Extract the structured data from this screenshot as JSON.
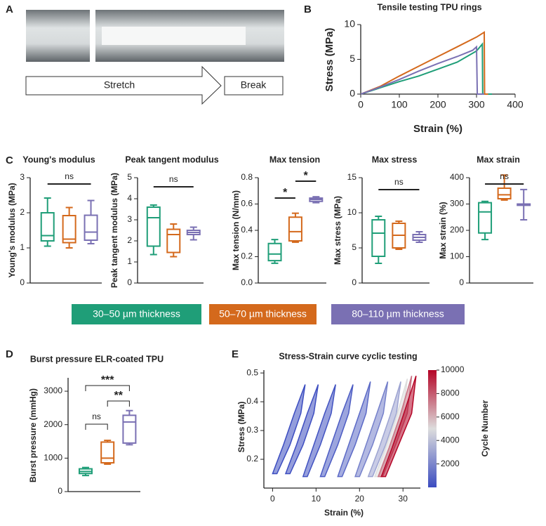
{
  "panels": [
    "A",
    "B",
    "C",
    "D",
    "E"
  ],
  "figure_a": {
    "steps": [
      "Stretch",
      "Break"
    ]
  },
  "legend": [
    {
      "name": "30–50 µm thickness",
      "color": "#1f9e78"
    },
    {
      "name": "50–70 µm thickness",
      "color": "#d4691c"
    },
    {
      "name": "80–110 µm thickness",
      "color": "#7a70b3"
    }
  ],
  "chart_data": [
    {
      "type": "line",
      "title": "Tensile testing TPU rings",
      "xlabel": "Strain (%)",
      "ylabel": "Stress (MPa)",
      "xlim": [
        0,
        400
      ],
      "xticks": [
        0,
        100,
        200,
        300,
        400
      ],
      "ylim": [
        0,
        10
      ],
      "yticks": [
        0,
        5,
        10
      ],
      "series": [
        {
          "color": "#1f9e78",
          "x": [
            0,
            50,
            100,
            150,
            200,
            250,
            300,
            315,
            316,
            340
          ],
          "values": [
            0,
            0.9,
            1.8,
            2.6,
            3.6,
            4.6,
            6.2,
            7.2,
            0,
            0
          ]
        },
        {
          "color": "#d4691c",
          "x": [
            0,
            50,
            100,
            150,
            200,
            250,
            300,
            320,
            321,
            330
          ],
          "values": [
            0,
            1.1,
            2.6,
            4.0,
            5.4,
            6.8,
            8.2,
            8.9,
            0,
            0
          ]
        },
        {
          "color": "#7a70b3",
          "x": [
            0,
            50,
            100,
            150,
            200,
            250,
            290,
            300,
            302,
            320
          ],
          "values": [
            0,
            1.0,
            2.1,
            3.3,
            4.4,
            5.4,
            6.3,
            6.8,
            0,
            0
          ]
        }
      ]
    },
    {
      "type": "box",
      "title": "Young's modulus",
      "ylabel": "Young's modulus (MPa)",
      "ylim": [
        0,
        3
      ],
      "yticks": [
        0,
        1,
        2,
        3
      ],
      "annotations": [
        "ns"
      ],
      "boxes": [
        {
          "min": 1.05,
          "q1": 1.2,
          "median": 1.35,
          "q3": 2.0,
          "max": 2.42
        },
        {
          "min": 1.0,
          "q1": 1.15,
          "median": 1.25,
          "q3": 1.92,
          "max": 2.15
        },
        {
          "min": 1.12,
          "q1": 1.22,
          "median": 1.45,
          "q3": 1.93,
          "max": 2.35
        }
      ]
    },
    {
      "type": "box",
      "title": "Peak tangent modulus",
      "ylabel": "Peak tangent modulus (MPa)",
      "ylim": [
        0,
        5
      ],
      "yticks": [
        0,
        1,
        2,
        3,
        4,
        5
      ],
      "annotations": [
        "ns"
      ],
      "boxes": [
        {
          "min": 1.35,
          "q1": 1.75,
          "median": 3.1,
          "q3": 3.6,
          "max": 3.7
        },
        {
          "min": 1.25,
          "q1": 1.45,
          "median": 2.3,
          "q3": 2.55,
          "max": 2.8
        },
        {
          "min": 2.05,
          "q1": 2.3,
          "median": 2.4,
          "q3": 2.5,
          "max": 2.65
        }
      ]
    },
    {
      "type": "box",
      "title": "Max tension",
      "ylabel": "Max tension (N/mm)",
      "ylim": [
        0,
        0.8
      ],
      "yticks": [
        {
          "value": 0,
          "label": "0.0"
        },
        0.2,
        0.4,
        0.6,
        0.8
      ],
      "annotations": [
        "*",
        "*"
      ],
      "boxes": [
        {
          "min": 0.15,
          "q1": 0.17,
          "median": 0.22,
          "q3": 0.3,
          "max": 0.33
        },
        {
          "min": 0.31,
          "q1": 0.32,
          "median": 0.39,
          "q3": 0.5,
          "max": 0.53
        },
        {
          "min": 0.61,
          "q1": 0.62,
          "median": 0.635,
          "q3": 0.645,
          "max": 0.655
        }
      ]
    },
    {
      "type": "box",
      "title": "Max stress",
      "ylabel": "Max stress (MPa)",
      "ylim": [
        0,
        15
      ],
      "yticks": [
        0,
        5,
        10,
        15
      ],
      "annotations": [
        "ns"
      ],
      "boxes": [
        {
          "min": 2.8,
          "q1": 3.8,
          "median": 7.1,
          "q3": 9.0,
          "max": 9.5
        },
        {
          "min": 4.8,
          "q1": 5.0,
          "median": 6.8,
          "q3": 8.5,
          "max": 8.8
        },
        {
          "min": 5.8,
          "q1": 6.1,
          "median": 6.5,
          "q3": 6.9,
          "max": 7.3
        }
      ]
    },
    {
      "type": "box",
      "title": "Max strain",
      "ylabel": "Max strain (%)",
      "ylim": [
        0,
        400
      ],
      "yticks": [
        0,
        100,
        200,
        300,
        400
      ],
      "annotations": [
        "ns"
      ],
      "boxes": [
        {
          "min": 165,
          "q1": 190,
          "median": 270,
          "q3": 305,
          "max": 310
        },
        {
          "min": 315,
          "q1": 320,
          "median": 335,
          "q3": 360,
          "max": 410
        },
        {
          "min": 240,
          "q1": 295,
          "median": 298,
          "q3": 300,
          "max": 355
        }
      ]
    },
    {
      "type": "box",
      "title": "Burst pressure ELR-coated TPU",
      "ylabel": "Burst pressure (mmHg)",
      "ylim": [
        0,
        3400
      ],
      "yticks": [
        0,
        1000,
        2000,
        3000
      ],
      "annotations": [
        "ns",
        "**",
        "***"
      ],
      "boxes": [
        {
          "min": 480,
          "q1": 540,
          "median": 600,
          "q3": 680,
          "max": 720
        },
        {
          "min": 820,
          "q1": 860,
          "median": 1000,
          "q3": 1480,
          "max": 1530
        },
        {
          "min": 1400,
          "q1": 1450,
          "median": 2080,
          "q3": 2280,
          "max": 2420
        }
      ]
    },
    {
      "type": "loops",
      "title": "Stress-Strain curve cyclic testing",
      "xlabel": "Strain (%)",
      "ylabel": "Stress (MPa)",
      "xlim": [
        -2,
        34
      ],
      "xticks": [
        0,
        10,
        20,
        30
      ],
      "ylim": [
        0.1,
        0.51
      ],
      "yticks": [
        0.2,
        0.3,
        0.4,
        0.5
      ],
      "colorbar": {
        "label": "Cycle Number",
        "lim": [
          0,
          10000
        ],
        "ticks": [
          2000,
          4000,
          6000,
          8000,
          10000
        ],
        "colors": [
          "#3b4cc0",
          "#dddddd",
          "#b40426"
        ]
      },
      "series": [
        {
          "cycle": 1,
          "x": [
            0,
            2.5,
            5,
            7.5,
            6.5,
            4,
            1
          ],
          "values": [
            0.15,
            0.25,
            0.36,
            0.46,
            0.36,
            0.25,
            0.15
          ]
        },
        {
          "cycle": 50,
          "x": [
            3,
            5.5,
            8,
            10.5,
            9.5,
            7,
            4
          ],
          "values": [
            0.15,
            0.25,
            0.36,
            0.46,
            0.36,
            0.25,
            0.15
          ]
        },
        {
          "cycle": 200,
          "x": [
            7,
            9.5,
            12,
            14.5,
            13.5,
            11,
            8
          ],
          "values": [
            0.14,
            0.25,
            0.36,
            0.46,
            0.36,
            0.25,
            0.14
          ]
        },
        {
          "cycle": 500,
          "x": [
            11,
            13.5,
            16,
            18.5,
            17.5,
            15,
            12
          ],
          "values": [
            0.14,
            0.25,
            0.36,
            0.46,
            0.36,
            0.25,
            0.14
          ]
        },
        {
          "cycle": 1000,
          "x": [
            15,
            17.5,
            20,
            22.5,
            21.5,
            19,
            16
          ],
          "values": [
            0.14,
            0.25,
            0.36,
            0.47,
            0.36,
            0.25,
            0.14
          ]
        },
        {
          "cycle": 1800,
          "x": [
            19,
            21.5,
            24,
            26.5,
            25.5,
            23,
            20
          ],
          "values": [
            0.14,
            0.25,
            0.36,
            0.47,
            0.36,
            0.25,
            0.14
          ]
        },
        {
          "cycle": 3000,
          "x": [
            22,
            24.5,
            27,
            29.5,
            28.5,
            26,
            23
          ],
          "values": [
            0.14,
            0.24,
            0.35,
            0.47,
            0.36,
            0.25,
            0.14
          ]
        },
        {
          "cycle": 5000,
          "x": [
            23.5,
            26,
            28.5,
            31,
            30,
            27.5,
            24.5
          ],
          "values": [
            0.14,
            0.24,
            0.35,
            0.48,
            0.36,
            0.25,
            0.14
          ]
        },
        {
          "cycle": 7500,
          "x": [
            24.3,
            26.8,
            29.3,
            32,
            31,
            28.3,
            25.3
          ],
          "values": [
            0.14,
            0.24,
            0.35,
            0.49,
            0.36,
            0.25,
            0.14
          ]
        },
        {
          "cycle": 10000,
          "x": [
            25,
            27.5,
            30,
            33,
            32,
            29,
            26
          ],
          "values": [
            0.14,
            0.24,
            0.35,
            0.49,
            0.36,
            0.25,
            0.14
          ]
        }
      ]
    }
  ]
}
